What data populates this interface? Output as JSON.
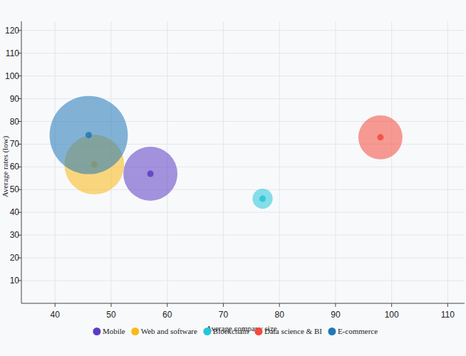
{
  "chart_data": {
    "type": "bubble",
    "x_label": "Average company size",
    "y_label": "Average rates (low)",
    "xlim": [
      34,
      113
    ],
    "ylim": [
      0,
      124
    ],
    "xticks": [
      40,
      50,
      60,
      70,
      80,
      90,
      100,
      110
    ],
    "yticks": [
      10,
      20,
      30,
      40,
      50,
      60,
      70,
      80,
      90,
      100,
      110,
      120
    ],
    "grid": true,
    "legend": "bottom",
    "series": [
      {
        "name": "Mobile",
        "color": "#5b3cc4",
        "x": [
          57
        ],
        "values": [
          57
        ],
        "sizes": [
          144
        ]
      },
      {
        "name": "Web and software",
        "color": "#f9b916",
        "x": [
          47
        ],
        "values": [
          61
        ],
        "sizes": [
          176
        ]
      },
      {
        "name": "Blockchain",
        "color": "#24c6d8",
        "x": [
          77
        ],
        "values": [
          46
        ],
        "sizes": [
          20
        ]
      },
      {
        "name": "Data science & BI",
        "color": "#f24a3c",
        "x": [
          98
        ],
        "values": [
          73
        ],
        "sizes": [
          96
        ]
      },
      {
        "name": "E-commerce",
        "color": "#1f78b8",
        "x": [
          46
        ],
        "values": [
          74
        ],
        "sizes": [
          302
        ]
      }
    ]
  }
}
